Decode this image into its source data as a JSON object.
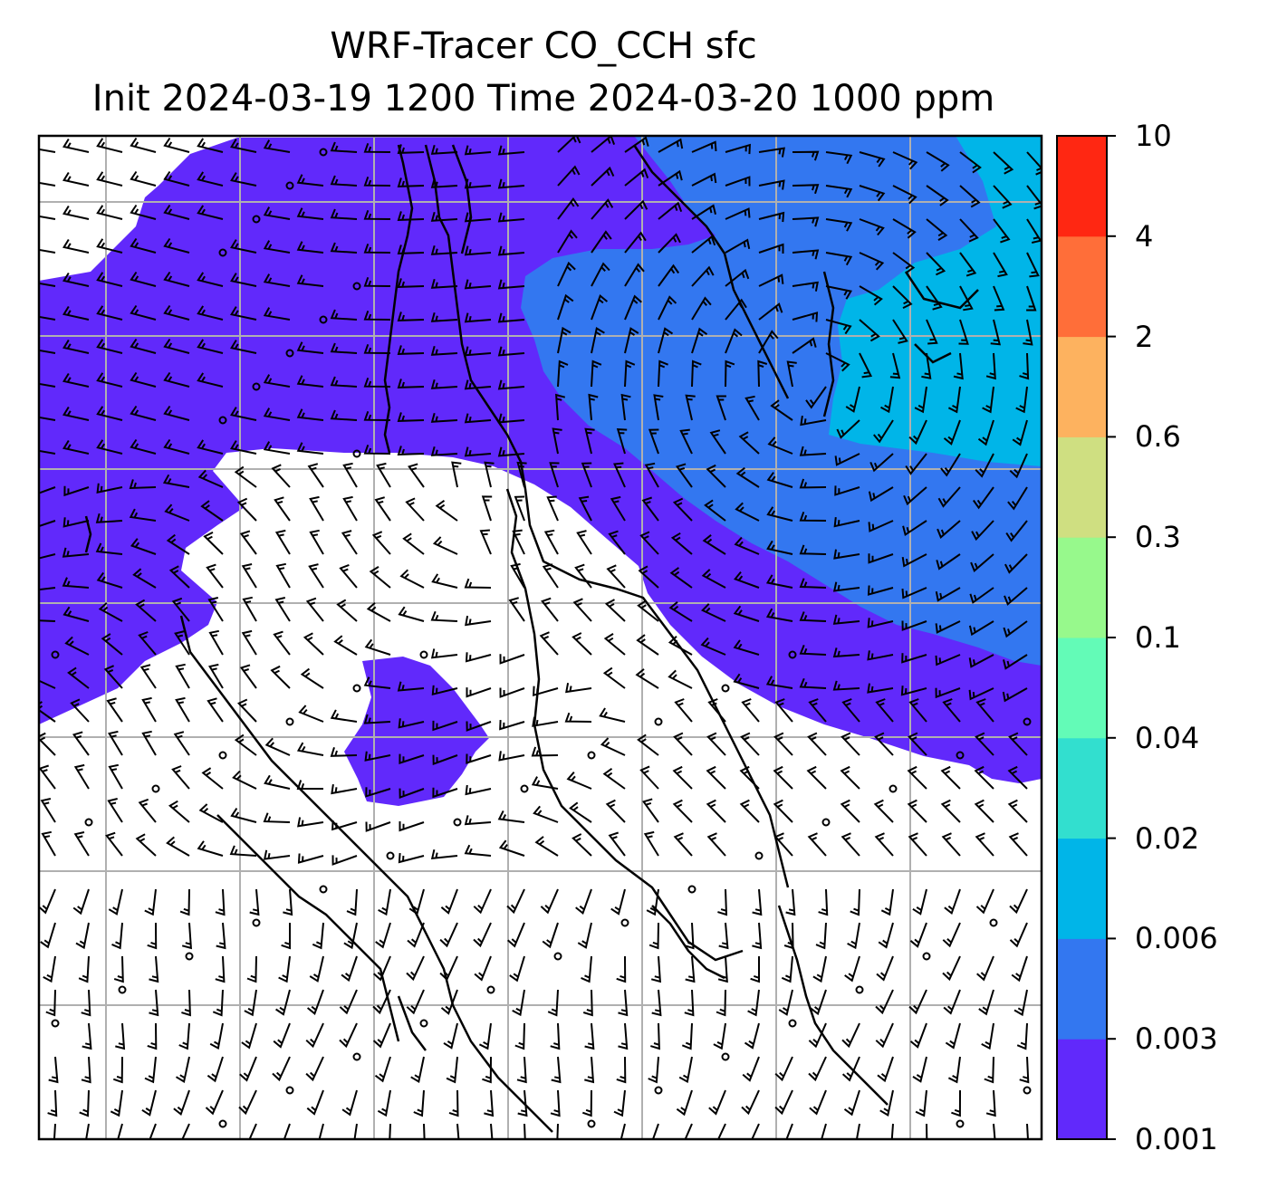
{
  "title": {
    "line1": "WRF-Tracer CO_CCH sfc",
    "line2": "Init 2024-03-19 1200 Time 2024-03-20 1000 ppm"
  },
  "colorbar": {
    "levels": [
      "0.001",
      "0.003",
      "0.006",
      "0.02",
      "0.04",
      "0.1",
      "0.3",
      "0.6",
      "2",
      "4",
      "10"
    ],
    "colors": [
      "#6129fb",
      "#3377f0",
      "#00b5e8",
      "#32dfcf",
      "#63fbb7",
      "#97f98c",
      "#cfdf81",
      "#fdb25f",
      "#ff6e39",
      "#ff2712"
    ]
  },
  "map": {
    "background_color": "#ffffff",
    "gridline_color": "#b0b0b0",
    "coastline_color": "#000000",
    "barb_color": "#000000"
  }
}
